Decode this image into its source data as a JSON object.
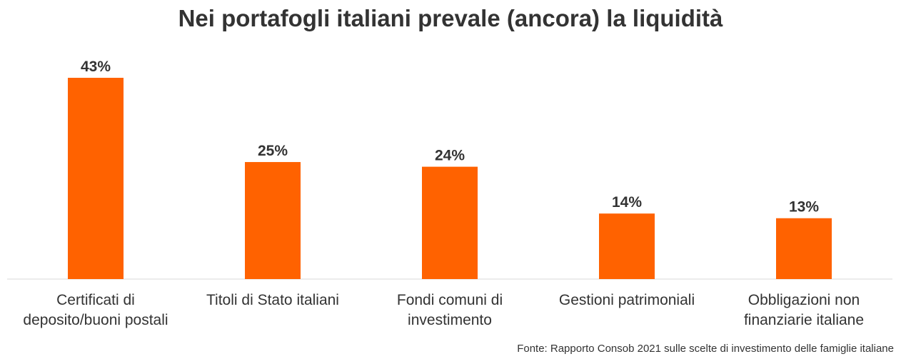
{
  "title": "Nei portafogli italiani prevale (ancora) la liquidità",
  "source": "Fonte: Rapporto Consob 2021 sulle scelte di investimento delle famiglie italiane",
  "colors": {
    "bar": "#FF6200",
    "axis": "#D9D9D9",
    "text": "#333333"
  },
  "chart_data": {
    "type": "bar",
    "title": "Nei portafogli italiani prevale (ancora) la liquidità",
    "categories": [
      [
        "Certificati di",
        "deposito/buoni postali"
      ],
      [
        "Titoli di Stato italiani"
      ],
      [
        "Fondi comuni di",
        "investimento"
      ],
      [
        "Gestioni patrimoniali"
      ],
      [
        "Obbligazioni non",
        "finanziarie italiane"
      ]
    ],
    "values": [
      43,
      25,
      24,
      14,
      13
    ],
    "data_labels": [
      "43%",
      "25%",
      "24%",
      "14%",
      "13%"
    ],
    "xlabel": "",
    "ylabel": "",
    "ylim": [
      0,
      43
    ],
    "grid": false,
    "legend": "none"
  }
}
